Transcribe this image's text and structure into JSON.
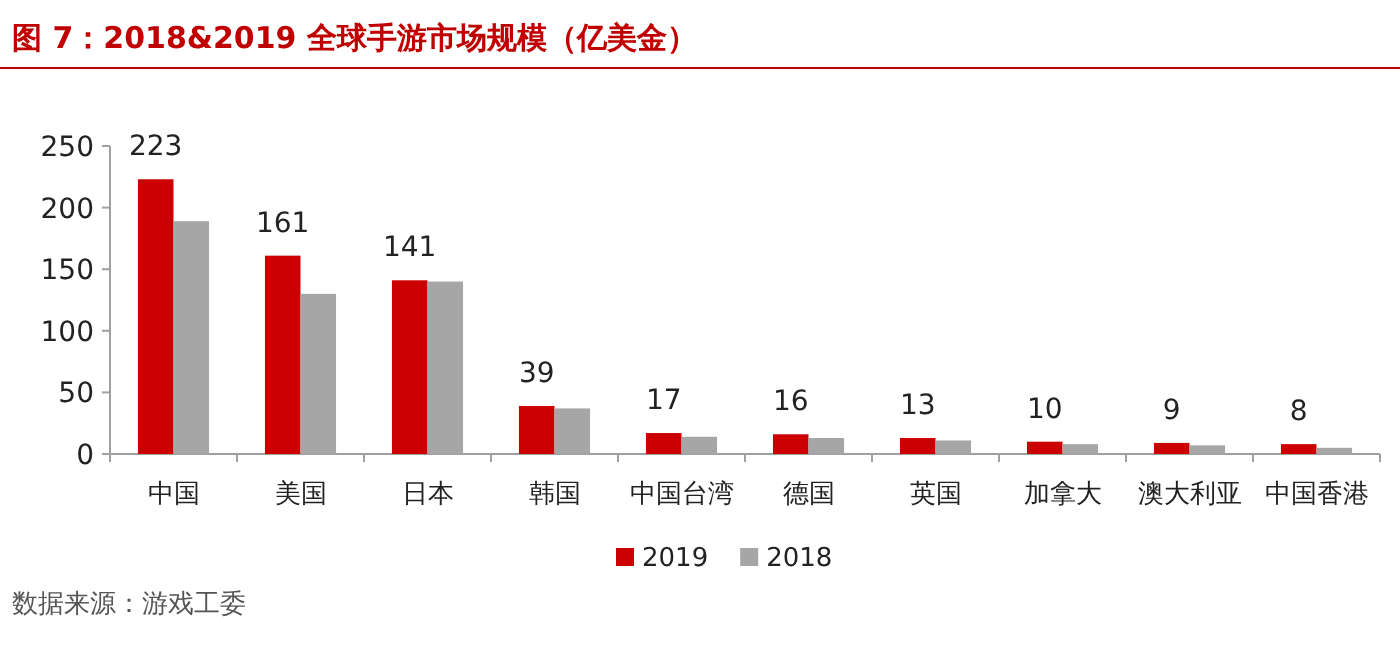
{
  "chart_data": {
    "type": "bar",
    "title": "图 7：2018&2019 全球手游市场规模（亿美金）",
    "categories": [
      "中国",
      "美国",
      "日本",
      "韩国",
      "中国台湾",
      "德国",
      "英国",
      "加拿大",
      "澳大利亚",
      "中国香港"
    ],
    "series": [
      {
        "name": "2019",
        "color": "#cc0000",
        "values": [
          223,
          161,
          141,
          39,
          17,
          16,
          13,
          10,
          9,
          8
        ],
        "value_labels": [
          "223",
          "161",
          "141",
          "39",
          "17",
          "16",
          "13",
          "10",
          "9",
          "8"
        ]
      },
      {
        "name": "2018",
        "color": "#a6a6a6",
        "values": [
          189,
          130,
          140,
          37,
          14,
          13,
          11,
          8,
          7,
          5
        ]
      }
    ],
    "ylim": [
      0,
      250
    ],
    "yticks": [
      0,
      50,
      100,
      150,
      200,
      250
    ],
    "legend": "bottom",
    "grid": false,
    "annotations": [
      "数据来源：游戏工委"
    ]
  }
}
